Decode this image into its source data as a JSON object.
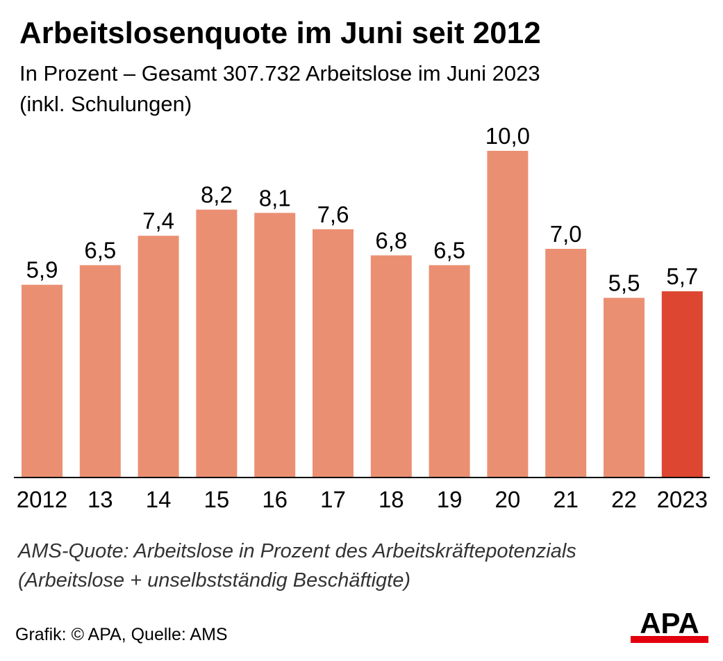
{
  "header": {
    "title": "Arbeitslosenquote im Juni seit 2012",
    "subtitle_line1": "In Prozent – Gesamt 307.732 Arbeitslose im Juni 2023",
    "subtitle_line2": "(inkl. Schulungen)"
  },
  "chart_data": {
    "type": "bar",
    "title": "Arbeitslosenquote im Juni seit 2012",
    "subtitle": "In Prozent – Gesamt 307.732 Arbeitslose im Juni 2023 (inkl. Schulungen)",
    "xlabel": "",
    "ylabel": "",
    "categories": [
      "2012",
      "13",
      "14",
      "15",
      "16",
      "17",
      "18",
      "19",
      "20",
      "21",
      "22",
      "2023"
    ],
    "values": [
      5.9,
      6.5,
      7.4,
      8.2,
      8.1,
      7.6,
      6.8,
      6.5,
      10.0,
      7.0,
      5.5,
      5.7
    ],
    "value_labels": [
      "5,9",
      "6,5",
      "7,4",
      "8,2",
      "8,1",
      "7,6",
      "6,8",
      "6,5",
      "10,0",
      "7,0",
      "5,5",
      "5,7"
    ],
    "ylim": [
      0,
      10
    ],
    "grid": false,
    "legend": "none",
    "colors": {
      "bar": "#eb8f72",
      "highlight": "#dd4630",
      "baseline": "#000000"
    },
    "highlight_index": 11
  },
  "footer": {
    "note_line1": "AMS-Quote: Arbeitslose in Prozent des Arbeitskräftepotenzials",
    "note_line2": "(Arbeitslose + unselbstständig Beschäftigte)",
    "source": "Grafik: © APA, Quelle: AMS",
    "logo_text": "APA",
    "logo_color": "#e3000f"
  }
}
